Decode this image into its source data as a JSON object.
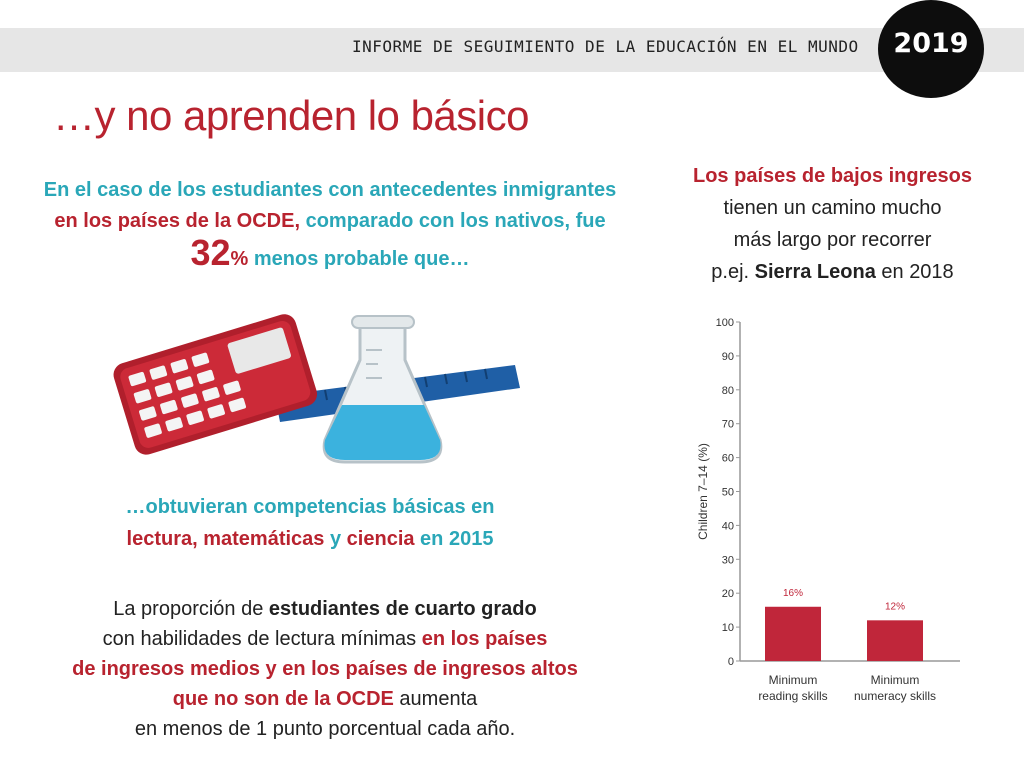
{
  "header": {
    "report_title": "INFORME DE SEGUIMIENTO DE LA EDUCACIÓN EN EL MUNDO",
    "year": "2019"
  },
  "title": "…y no aprenden lo básico",
  "lead": {
    "part1": "En el caso de los estudiantes con antecedentes inmigrantes",
    "part2": "en los países de la OCDE,",
    "part3": " comparado con los nativos, fue",
    "number": "32",
    "percent": "%",
    "part4": " menos probable que…"
  },
  "outcome": {
    "part1": "…obtuvieran competencias básicas en",
    "part2": "lectura, matemáticas",
    "part3": " y ",
    "part4": "ciencia",
    "part5": " en 2015"
  },
  "bottom": {
    "l1a": "La proporción de ",
    "l1b": "estudiantes de cuarto grado",
    "l2a": "con habilidades de lectura mínimas ",
    "l2b": "en los países",
    "l3": "de ingresos medios y en los países de ingresos altos",
    "l4a": "que no son de la OCDE",
    "l4b": " aumenta",
    "l5": "en menos de 1 punto porcentual cada año."
  },
  "right": {
    "l1": "Los países de bajos ingresos",
    "l2": "tienen un camino mucho",
    "l3": "más largo por recorrer",
    "l4a": "p.ej. ",
    "l4b": "Sierra Leona",
    "l4c": " en 2018"
  },
  "colors": {
    "accent_red": "#b8232f",
    "teal": "#2aa7b8",
    "bar": "#c0263a"
  },
  "chart_data": {
    "type": "bar",
    "categories": [
      "Minimum reading skills",
      "Minimum numeracy skills"
    ],
    "category_lines": [
      [
        "Minimum",
        "reading skills"
      ],
      [
        "Minimum",
        "numeracy skills"
      ]
    ],
    "values": [
      16,
      12
    ],
    "data_labels": [
      "16%",
      "12%"
    ],
    "ylabel": "Children 7–14 (%)",
    "ylim": [
      0,
      100
    ],
    "yticks": [
      0,
      10,
      20,
      30,
      40,
      50,
      60,
      70,
      80,
      90,
      100
    ],
    "grid": false
  }
}
